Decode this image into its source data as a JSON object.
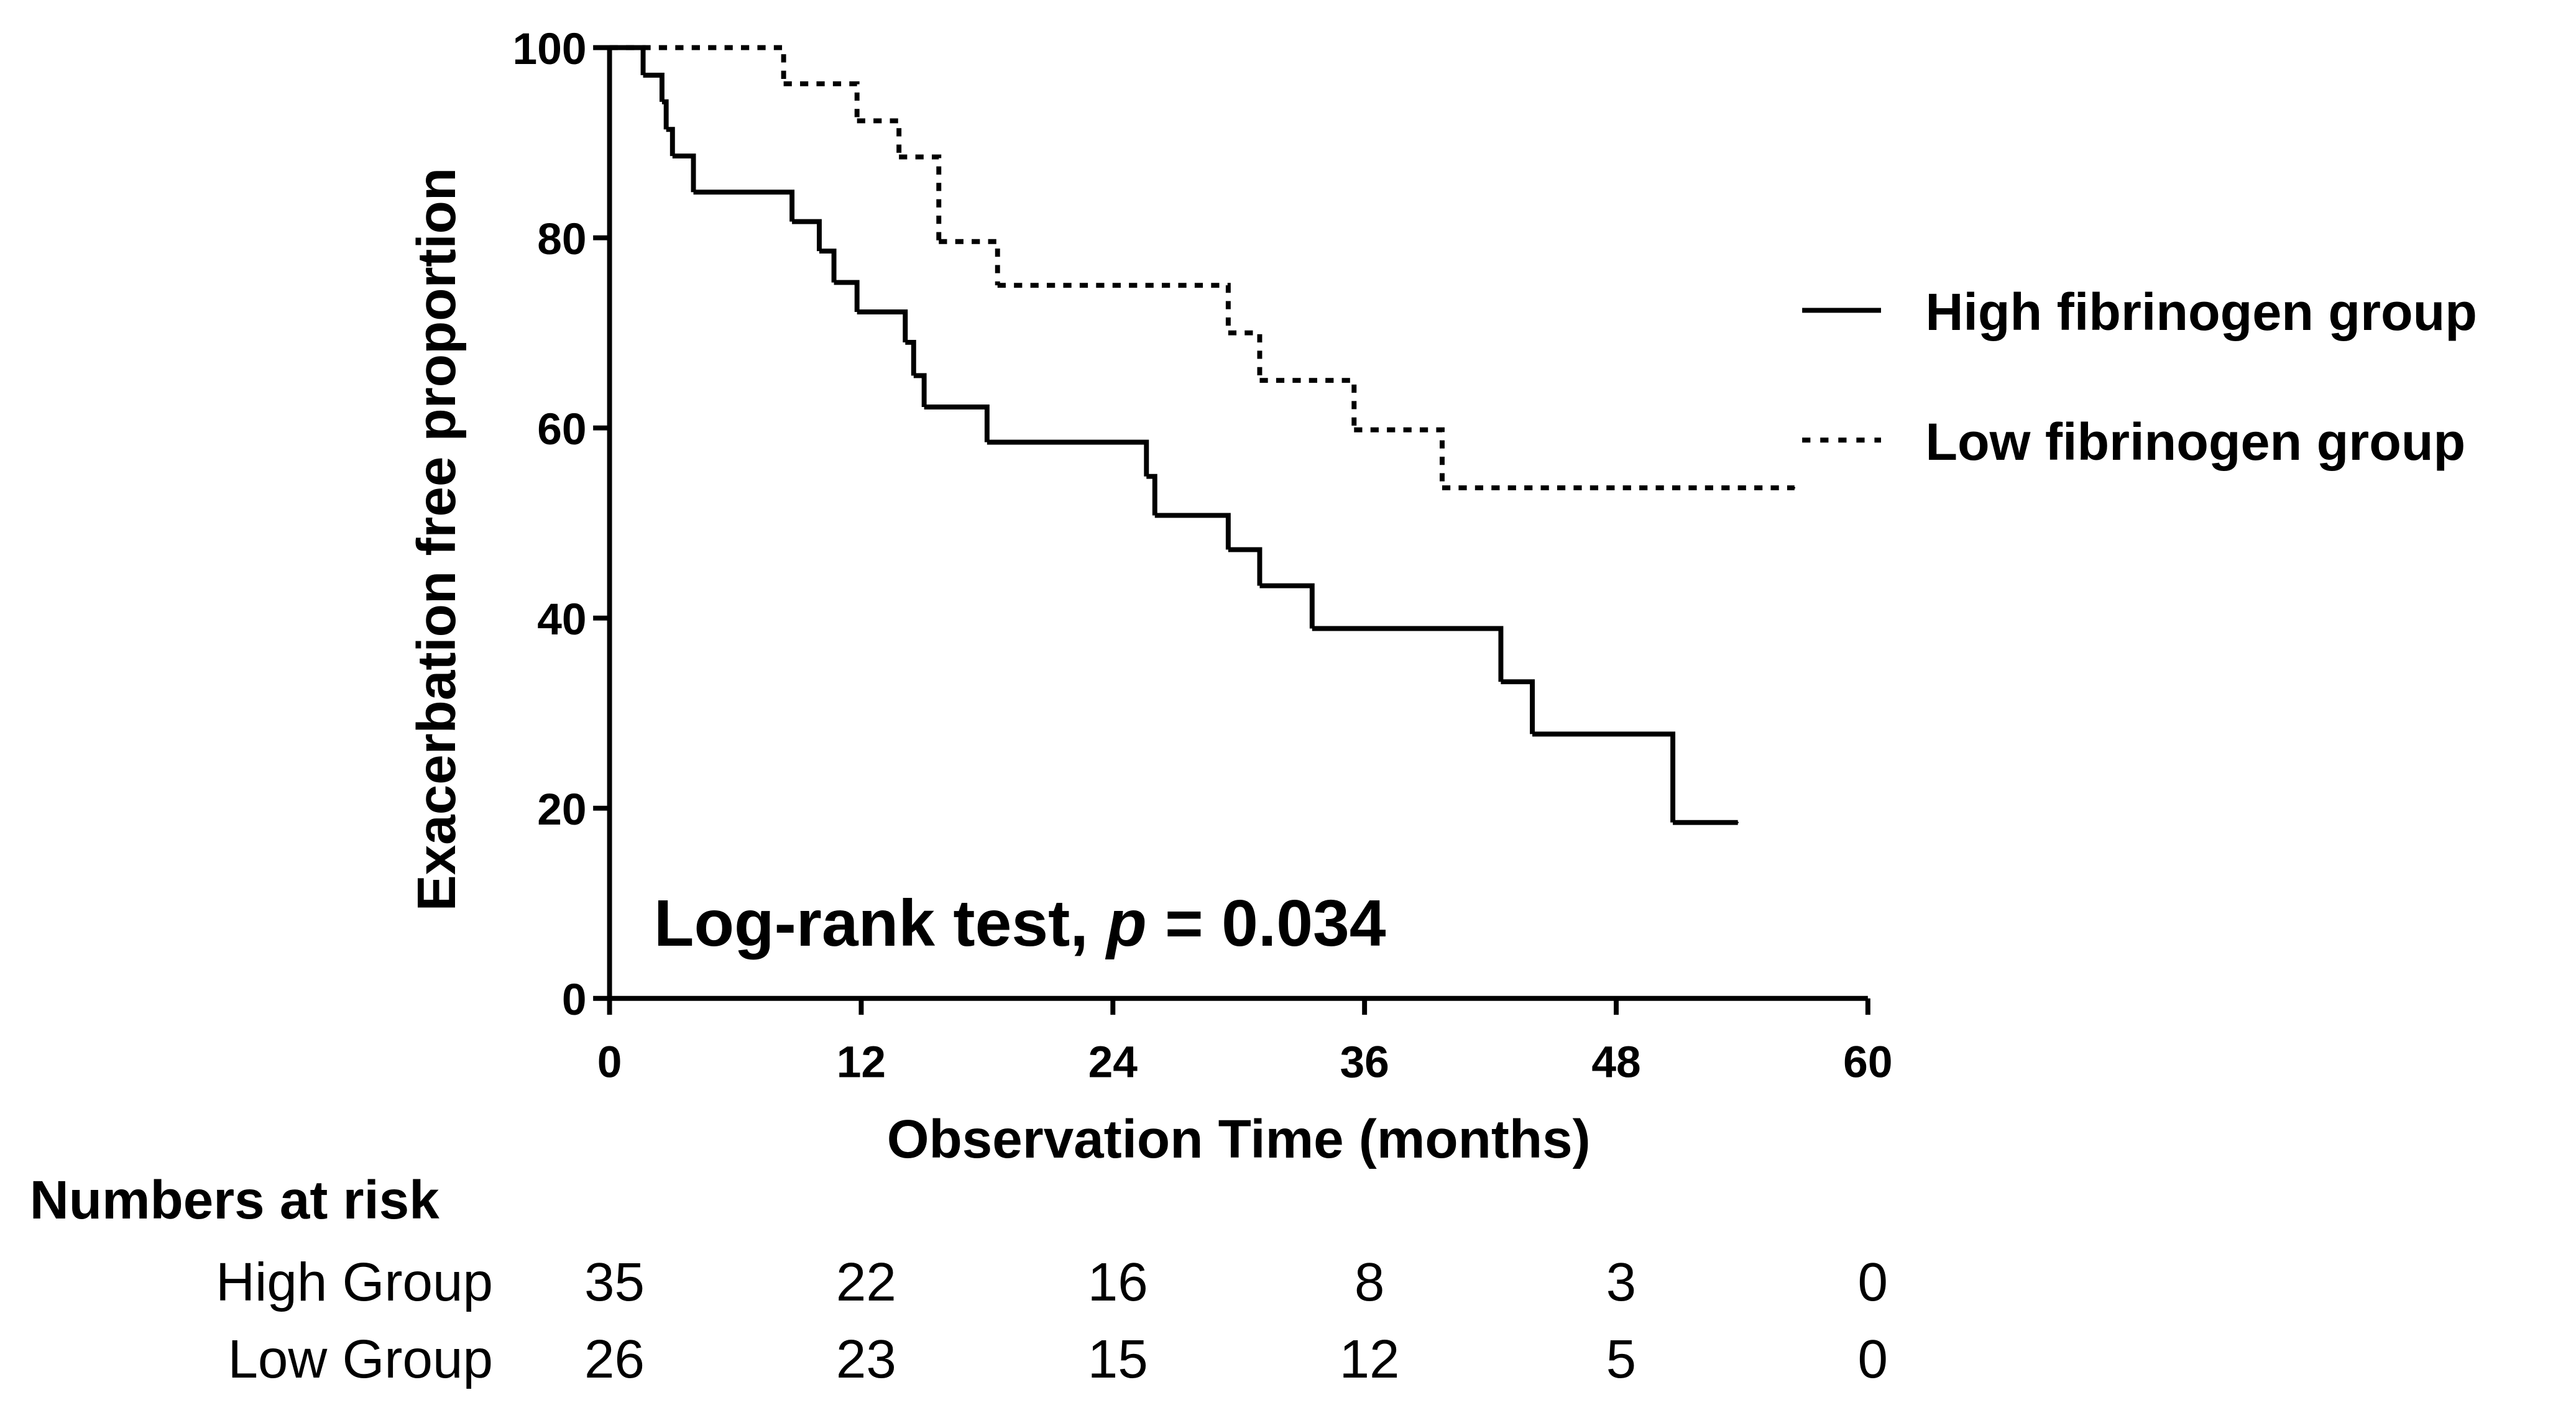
{
  "chart_data": {
    "type": "step",
    "annotation": [
      "Log-rank test, ",
      "p",
      " = 0.034"
    ],
    "xlabel": "Observation Time (months)",
    "ylabel": "Exacerbation free proportion",
    "xlim": [
      0,
      60
    ],
    "xticks": [
      0,
      12,
      24,
      36,
      48,
      60
    ],
    "ylim": [
      0,
      100
    ],
    "yticks": [
      0,
      20,
      40,
      60,
      80,
      100
    ],
    "legend": "right",
    "series": [
      {
        "name": "High fibrinogen group",
        "color": "#000000",
        "linestyle": "solid",
        "x": [
          0,
          1.6,
          2.5,
          2.7,
          3.0,
          4.0,
          8.7,
          10.0,
          10.7,
          11.8,
          14.1,
          14.5,
          15.0,
          18.0,
          25.6,
          26.0,
          29.5,
          31.0,
          33.5,
          42.5,
          44.0,
          50.7,
          53.8
        ],
        "values": [
          100,
          97.1,
          94.3,
          91.4,
          88.6,
          84.8,
          81.7,
          78.6,
          75.3,
          72.2,
          69,
          65.5,
          62.2,
          58.5,
          54.9,
          50.8,
          47.2,
          43.4,
          38.9,
          33.3,
          27.8,
          18.5,
          18.5
        ]
      },
      {
        "name": "Low fibrinogen group",
        "color": "#000000",
        "linestyle": "dashed",
        "x": [
          0,
          8.3,
          11.8,
          13.8,
          15.7,
          18.5,
          29.5,
          31.0,
          35.5,
          39.7,
          56.5
        ],
        "values": [
          100,
          96.2,
          92.3,
          88.5,
          79.6,
          75,
          70,
          65,
          59.8,
          53.7,
          53.7
        ]
      }
    ],
    "risk_table": {
      "title": "Numbers at risk",
      "rows": [
        {
          "name": "High Group",
          "values": [
            35,
            22,
            16,
            8,
            3,
            0
          ]
        },
        {
          "name": "Low Group",
          "values": [
            26,
            23,
            15,
            12,
            5,
            0
          ]
        }
      ]
    }
  }
}
